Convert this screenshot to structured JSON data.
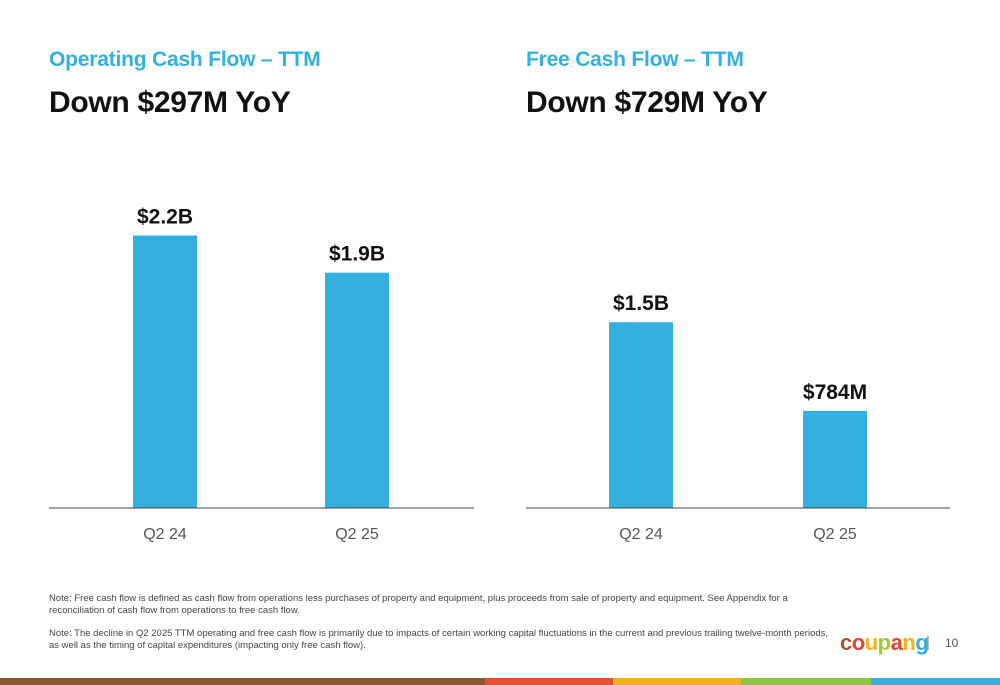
{
  "left_panel": {
    "subtitle": "Operating Cash Flow – TTM",
    "headline": "Down $297M YoY"
  },
  "right_panel": {
    "subtitle": "Free Cash Flow – TTM",
    "headline": "Down $729M YoY"
  },
  "chart_data": [
    {
      "type": "bar",
      "title": "Operating Cash Flow – TTM",
      "categories": [
        "Q2 24",
        "Q2 25"
      ],
      "values": [
        2.2,
        1.9
      ],
      "unit": "billions USD",
      "data_labels": [
        "$2.2B",
        "$1.9B"
      ],
      "ylim": [
        0,
        2.6
      ],
      "grid": false,
      "bar_color": "#34b0de"
    },
    {
      "type": "bar",
      "title": "Free Cash Flow – TTM",
      "categories": [
        "Q2 24",
        "Q2 25"
      ],
      "values": [
        1.5,
        0.784
      ],
      "unit": "billions USD",
      "data_labels": [
        "$1.5B",
        "$784M"
      ],
      "ylim": [
        0,
        2.6
      ],
      "grid": false,
      "bar_color": "#34b0de"
    }
  ],
  "notes": [
    "Note: Free cash flow is defined as cash flow from operations less purchases of property and equipment, plus proceeds from sale of property and equipment. See Appendix for a reconciliation of cash flow from operations to free cash flow.",
    "Note: The decline in Q2 2025 TTM operating and free cash flow is primarily due to impacts of certain working capital fluctuations in the current and previous trailing twelve-month periods, as well as the timing of capital expenditures (impacting only free cash flow)."
  ],
  "footer": {
    "logo_letters": [
      {
        "ch": "c",
        "color": "#a8562b"
      },
      {
        "ch": "o",
        "color": "#e2452d"
      },
      {
        "ch": "u",
        "color": "#f5b21a"
      },
      {
        "ch": "p",
        "color": "#a8c43a"
      },
      {
        "ch": "a",
        "color": "#e2452d"
      },
      {
        "ch": "n",
        "color": "#f5b21a"
      },
      {
        "ch": "g",
        "color": "#34b0de"
      }
    ],
    "separator": "|",
    "page_number": "10",
    "bar_colors": [
      "#8a5a2e",
      "#e8502d",
      "#f5b21a",
      "#8cc63f",
      "#34b0de"
    ]
  }
}
